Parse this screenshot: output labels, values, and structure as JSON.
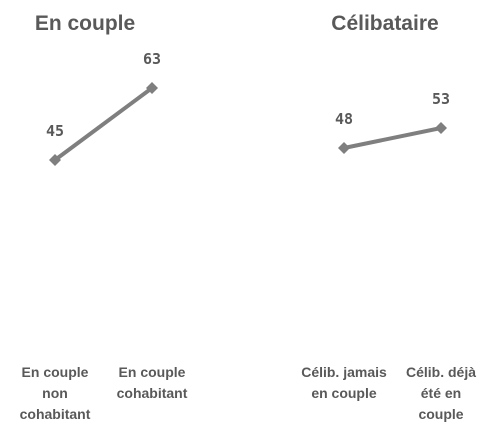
{
  "chart_data": [
    {
      "type": "line",
      "title": "En couple",
      "categories": [
        "En couple non cohabitant",
        "En couple cohabitant"
      ],
      "values": [
        45,
        63
      ],
      "color": "#7f7f7f",
      "ylim": [
        0,
        80
      ]
    },
    {
      "type": "line",
      "title": "Célibataire",
      "categories": [
        "Célib. jamais en couple",
        "Célib. déjà été en couple"
      ],
      "values": [
        48,
        53
      ],
      "color": "#7f7f7f",
      "ylim": [
        0,
        80
      ]
    }
  ]
}
